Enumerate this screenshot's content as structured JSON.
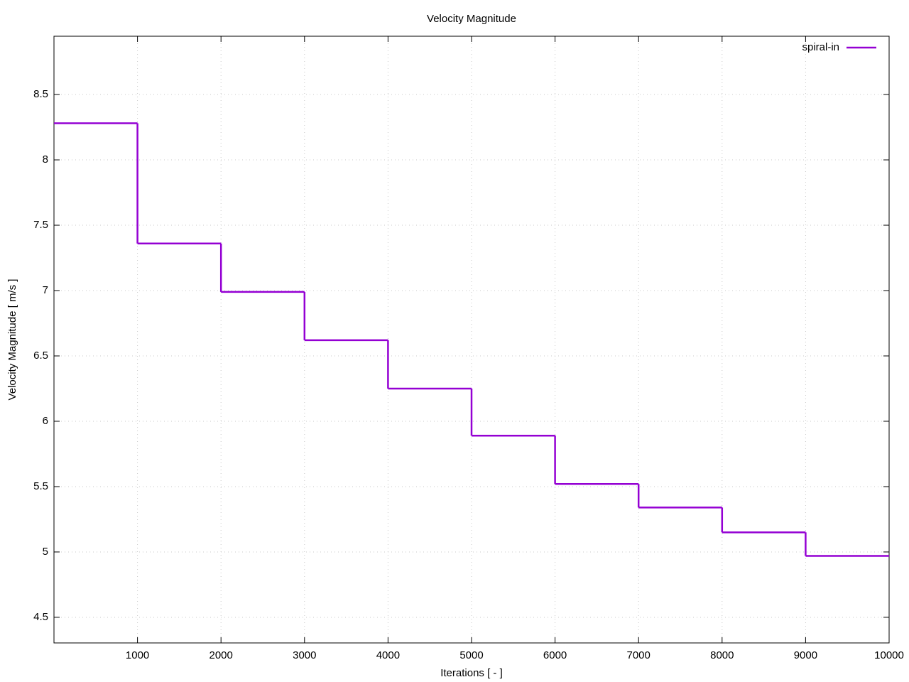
{
  "chart_data": {
    "type": "line",
    "step": true,
    "title": "Velocity Magnitude",
    "x_label": "Iterations [ - ]",
    "y_label": "Velocity Magnitude [ m/s ]",
    "x": [
      0,
      1000,
      2000,
      3000,
      4000,
      5000,
      6000,
      7000,
      8000,
      9000
    ],
    "series": [
      {
        "name": "spiral-in",
        "color": "#9400d3",
        "values": [
          8.28,
          7.36,
          6.99,
          6.62,
          6.25,
          5.89,
          5.52,
          5.34,
          5.15,
          4.97
        ]
      }
    ],
    "xlim": [
      0,
      10000
    ],
    "xticks": [
      1000,
      2000,
      3000,
      4000,
      5000,
      6000,
      7000,
      8000,
      9000,
      10000
    ],
    "ylim": [
      4.304,
      8.946
    ],
    "yticks": [
      4.5,
      5,
      5.5,
      6,
      6.5,
      7,
      7.5,
      8,
      8.5
    ],
    "grid": true,
    "legend": "top-right"
  }
}
